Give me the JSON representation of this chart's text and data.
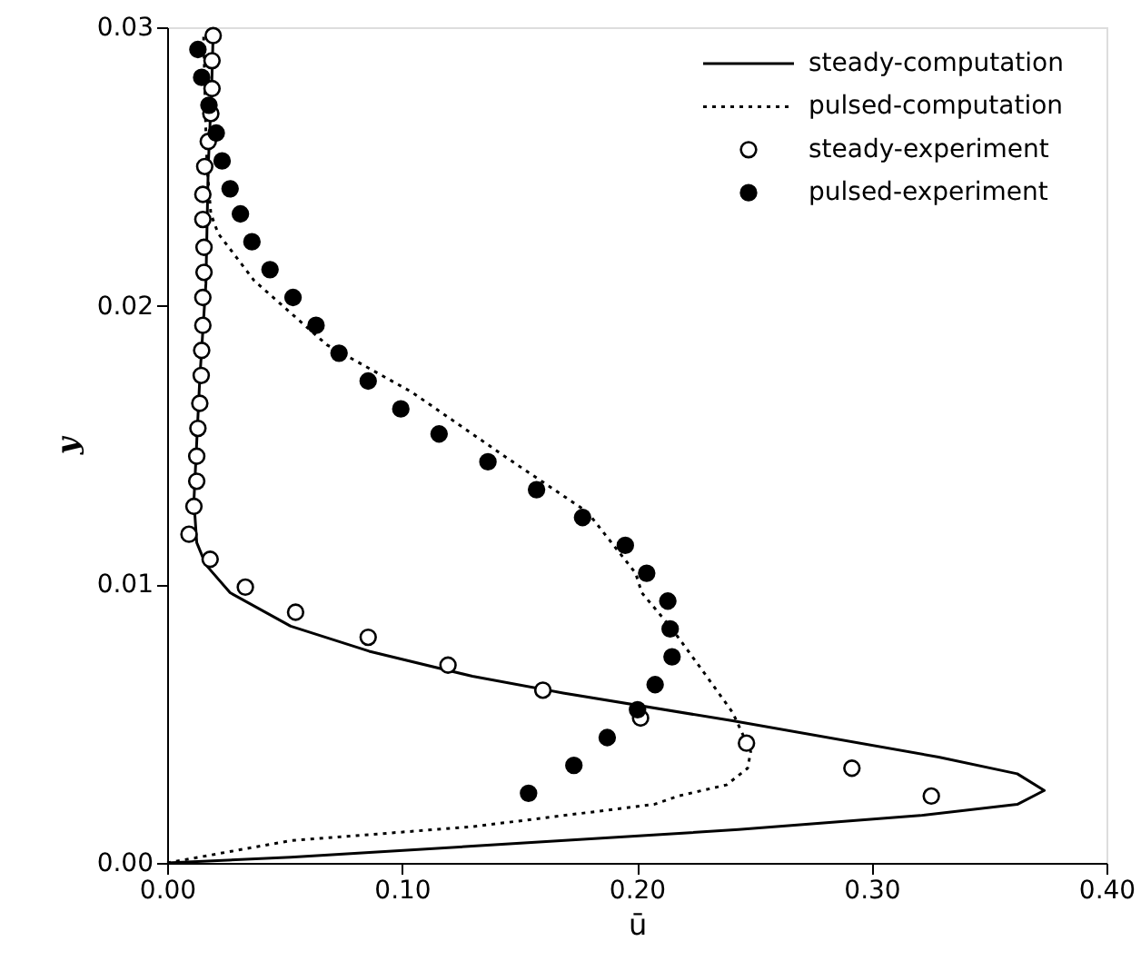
{
  "chart_data": {
    "type": "line",
    "xlabel": "ū",
    "ylabel": "y",
    "xlim": [
      0,
      0.4
    ],
    "ylim": [
      0,
      0.03
    ],
    "xticks": [
      {
        "value": 0,
        "label": "0.00"
      },
      {
        "value": 0.1,
        "label": "0.10"
      },
      {
        "value": 0.2,
        "label": "0.20"
      },
      {
        "value": 0.3,
        "label": "0.30"
      },
      {
        "value": 0.4,
        "label": "0.40"
      }
    ],
    "yticks": [
      {
        "value": 0,
        "label": "0.00"
      },
      {
        "value": 0.01,
        "label": "0.01"
      },
      {
        "value": 0.02,
        "label": "0.02"
      },
      {
        "value": 0.03,
        "label": "0.03"
      }
    ],
    "grid": false,
    "legend": "top right",
    "series": [
      {
        "name": "steady-computation",
        "line_style": "solid",
        "color": "#000000",
        "x": [
          0,
          0.0526,
          0.13,
          0.207,
          0.2433,
          0.3207,
          0.362,
          0.3735,
          0.362,
          0.3285,
          0.2408,
          0.1686,
          0.13,
          0.086,
          0.0526,
          0.0268,
          0.0165,
          0.0126,
          0.0114,
          0.0139,
          0.0165,
          0.0175,
          0.019,
          0.0196
        ],
        "values": [
          0,
          0.0002,
          0.0006,
          0.001,
          0.0012,
          0.0017,
          0.0021,
          0.0026,
          0.0032,
          0.0038,
          0.0051,
          0.0061,
          0.0067,
          0.0076,
          0.0085,
          0.0097,
          0.0107,
          0.0115,
          0.013,
          0.0174,
          0.0208,
          0.025,
          0.028,
          0.0298
        ]
      },
      {
        "name": "pulsed-computation",
        "line_style": "dotted",
        "color": "#000000",
        "x": [
          0,
          0.0526,
          0.13,
          0.2073,
          0.2176,
          0.2382,
          0.2472,
          0.2485,
          0.2408,
          0.228,
          0.215,
          0.2021,
          0.1995,
          0.1789,
          0.1454,
          0.1042,
          0.068,
          0.0371,
          0.0217,
          0.0186,
          0.017,
          0.0165,
          0.0155
        ],
        "values": [
          0,
          0.0008,
          0.0013,
          0.0021,
          0.0024,
          0.0028,
          0.0034,
          0.004,
          0.0054,
          0.0069,
          0.0084,
          0.0097,
          0.0104,
          0.0126,
          0.0145,
          0.0169,
          0.0186,
          0.0209,
          0.0226,
          0.0233,
          0.025,
          0.0262,
          0.0298
        ]
      },
      {
        "name": "steady-experiment",
        "type": "scatter",
        "marker": "circle",
        "color": "#000000",
        "x": [
          0.0196,
          0.0191,
          0.0191,
          0.0186,
          0.0175,
          0.016,
          0.0152,
          0.0152,
          0.0157,
          0.0157,
          0.0152,
          0.0152,
          0.0147,
          0.0145,
          0.0139,
          0.0131,
          0.0126,
          0.0126,
          0.0114,
          0.0093,
          0.0183,
          0.0333,
          0.0547,
          0.0856,
          0.1196,
          0.16,
          0.2016,
          0.2467,
          0.2916,
          0.3254
        ],
        "values": [
          0.0297,
          0.0288,
          0.0278,
          0.0269,
          0.0259,
          0.025,
          0.024,
          0.0231,
          0.0221,
          0.0212,
          0.0203,
          0.0193,
          0.0184,
          0.0175,
          0.0165,
          0.0156,
          0.0146,
          0.0137,
          0.0128,
          0.0118,
          0.0109,
          0.0099,
          0.009,
          0.0081,
          0.0071,
          0.0062,
          0.0052,
          0.0043,
          0.0034,
          0.0024
        ]
      },
      {
        "name": "pulsed-experiment",
        "type": "scatter",
        "marker": "circle",
        "color": "#000000",
        "x": [
          0.0131,
          0.0147,
          0.0178,
          0.0209,
          0.0234,
          0.0268,
          0.0312,
          0.0361,
          0.0438,
          0.0536,
          0.0634,
          0.0732,
          0.0856,
          0.0995,
          0.1158,
          0.1366,
          0.1573,
          0.1769,
          0.1951,
          0.2042,
          0.2132,
          0.2142,
          0.215,
          0.2078,
          0.2003,
          0.1874,
          0.1732,
          0.1539
        ],
        "values": [
          0.0292,
          0.0282,
          0.0272,
          0.0262,
          0.0252,
          0.0242,
          0.0233,
          0.0223,
          0.0213,
          0.0203,
          0.0193,
          0.0183,
          0.0173,
          0.0163,
          0.0154,
          0.0144,
          0.0134,
          0.0124,
          0.0114,
          0.0104,
          0.0094,
          0.0084,
          0.0074,
          0.0064,
          0.0055,
          0.0045,
          0.0035,
          0.0025
        ]
      }
    ]
  }
}
